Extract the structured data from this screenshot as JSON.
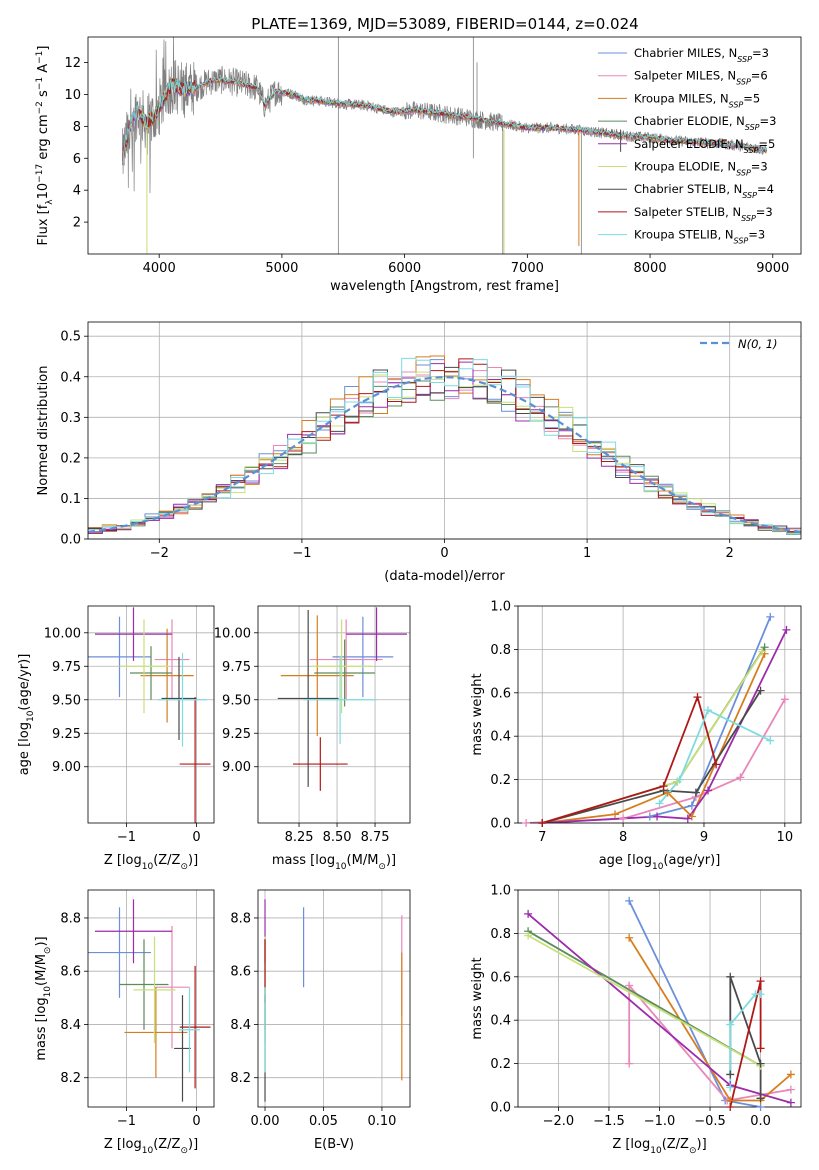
{
  "figure": {
    "title": "PLATE=1369, MJD=53089, FIBERID=0144, z=0.024"
  },
  "chart_data": [
    {
      "id": "spectrum",
      "type": "line",
      "xlabel": "wavelength [Angstrom, rest frame]",
      "ylabel_parts": [
        "Flux [f",
        "λ",
        "10",
        "−17",
        " erg cm",
        "−2",
        " s",
        "−1",
        " A",
        "−1",
        "]"
      ],
      "xlim": [
        3420,
        9230
      ],
      "ylim": [
        0,
        13.6
      ],
      "xticks": [
        4000,
        5000,
        6000,
        7000,
        8000,
        9000
      ],
      "yticks": [
        2,
        4,
        6,
        8,
        10,
        12
      ],
      "grid": false,
      "legend_position": "top-right",
      "data_color": "#808080",
      "data_anchors_x": [
        3700,
        3760,
        3820,
        3900,
        3960,
        4000,
        4100,
        4200,
        4300,
        4400,
        4500,
        4600,
        4700,
        4800,
        4862,
        4950,
        5100,
        5175,
        5300,
        5500,
        5700,
        5895,
        6100,
        6300,
        6563,
        6700,
        7000,
        7200,
        7400,
        7600,
        7800,
        8000,
        8200,
        8400,
        8600,
        8800,
        8950
      ],
      "data_anchors_y": [
        6.0,
        8.0,
        9.0,
        8.2,
        8.6,
        9.2,
        10.6,
        10.3,
        10.4,
        10.8,
        10.9,
        10.8,
        10.6,
        10.4,
        9.3,
        10.2,
        10.0,
        9.7,
        9.6,
        9.4,
        9.3,
        8.9,
        9.0,
        8.8,
        8.5,
        8.3,
        7.9,
        7.9,
        7.8,
        7.6,
        7.4,
        7.3,
        7.1,
        7.0,
        6.9,
        6.7,
        6.5
      ],
      "series": [
        {
          "name": "Chabrier MILES",
          "nssp": "3",
          "color": "#6c8fdc"
        },
        {
          "name": "Salpeter MILES",
          "nssp": "6",
          "color": "#e887b8"
        },
        {
          "name": "Kroupa MILES",
          "nssp": "5",
          "color": "#d67e1e"
        },
        {
          "name": "Chabrier ELODIE",
          "nssp": "3",
          "color": "#5c8c5c"
        },
        {
          "name": "Salpeter ELODIE",
          "nssp": "5",
          "color": "#9c2cac"
        },
        {
          "name": "Kroupa ELODIE",
          "nssp": "3",
          "color": "#c8e07a"
        },
        {
          "name": "Chabrier STELIB",
          "nssp": "4",
          "color": "#4a4a4a"
        },
        {
          "name": "Salpeter STELIB",
          "nssp": "3",
          "color": "#b01818"
        },
        {
          "name": "Kroupa STELIB",
          "nssp": "3",
          "color": "#7cdce0"
        }
      ],
      "legend_prefix": "N",
      "legend_sub": "SSP",
      "legend_eq": "="
    },
    {
      "id": "residuals",
      "type": "line",
      "xlabel": "(data-model)/error",
      "ylabel": "Normed distribution",
      "xlim": [
        -2.5,
        2.5
      ],
      "ylim": [
        0,
        0.535
      ],
      "xticks": [
        -2,
        -1,
        0,
        1,
        2
      ],
      "xticklabels": [
        "−2",
        "−1",
        "0",
        "1",
        "2"
      ],
      "yticks": [
        0.0,
        0.1,
        0.2,
        0.3,
        0.4,
        0.5
      ],
      "yticklabels": [
        "0.0",
        "0.1",
        "0.2",
        "0.3",
        "0.4",
        "0.5"
      ],
      "grid": true,
      "legend_position": "top-right",
      "reference_label": "N(0, 1)",
      "reference_color": "#5b8fd6",
      "bin_width": 0.1,
      "series_colors": [
        "#6c8fdc",
        "#e887b8",
        "#d67e1e",
        "#5c8c5c",
        "#9c2cac",
        "#c8e07a",
        "#4a4a4a",
        "#b01818",
        "#7cdce0"
      ]
    },
    {
      "id": "age-vs-Z",
      "type": "scatter",
      "xlabel_parts": [
        "Z [log",
        "10",
        "(Z/Z",
        "⊙",
        ")]"
      ],
      "ylabel_parts": [
        "age  [log",
        "10",
        "(age/yr)]"
      ],
      "xlim": [
        -1.55,
        0.25
      ],
      "ylim": [
        8.58,
        10.2
      ],
      "xticks": [
        -1,
        0
      ],
      "xticklabels": [
        "−1",
        "0"
      ],
      "yticks": [
        9.0,
        9.25,
        9.5,
        9.75,
        10.0
      ],
      "yticklabels": [
        "9.00",
        "9.25",
        "9.50",
        "9.75",
        "10.00"
      ],
      "grid": true,
      "points": [
        {
          "x": -1.1,
          "xerr": 0.45,
          "y": 9.82,
          "yerr": 0.3,
          "color": "#6c8fdc"
        },
        {
          "x": -0.35,
          "xerr": 0.25,
          "y": 9.8,
          "yerr": 0.3,
          "color": "#e887b8"
        },
        {
          "x": -0.42,
          "xerr": 0.38,
          "y": 9.68,
          "yerr": 0.35,
          "color": "#d67e1e"
        },
        {
          "x": -0.65,
          "xerr": 0.3,
          "y": 9.7,
          "yerr": 0.2,
          "color": "#5c8c5c"
        },
        {
          "x": -0.9,
          "xerr": 0.55,
          "y": 9.99,
          "yerr": 0.2,
          "color": "#9c2cac"
        },
        {
          "x": -0.75,
          "xerr": 0.35,
          "y": 9.75,
          "yerr": 0.35,
          "color": "#c8e07a"
        },
        {
          "x": -0.25,
          "xerr": 0.25,
          "y": 9.51,
          "yerr": 0.31,
          "color": "#4a4a4a"
        },
        {
          "x": -0.02,
          "xerr": 0.22,
          "y": 9.02,
          "yerr": 0.5,
          "color": "#b01818"
        },
        {
          "x": -0.2,
          "xerr": 0.35,
          "y": 9.5,
          "yerr": 0.35,
          "color": "#7cdce0"
        }
      ]
    },
    {
      "id": "age-vs-mass",
      "type": "scatter",
      "xlabel_parts": [
        "mass [log",
        "10",
        "(M/M",
        "⊙",
        ")]"
      ],
      "xlim": [
        7.98,
        8.98
      ],
      "ylim": [
        8.58,
        10.2
      ],
      "xticks": [
        8.25,
        8.5,
        8.75
      ],
      "xticklabels": [
        "8.25",
        "8.50",
        "8.75"
      ],
      "yticks": [
        9.0,
        9.25,
        9.5,
        9.75,
        10.0
      ],
      "yticklabels": [
        "9.00",
        "9.25",
        "9.50",
        "9.75",
        "10.00"
      ],
      "grid": true,
      "points": [
        {
          "x": 8.67,
          "xerr": 0.2,
          "y": 9.82,
          "yerr": 0.3,
          "color": "#6c8fdc"
        },
        {
          "x": 8.56,
          "xerr": 0.24,
          "y": 9.8,
          "yerr": 0.3,
          "color": "#e887b8"
        },
        {
          "x": 8.37,
          "xerr": 0.24,
          "y": 9.68,
          "yerr": 0.45,
          "color": "#d67e1e"
        },
        {
          "x": 8.55,
          "xerr": 0.2,
          "y": 9.7,
          "yerr": 0.25,
          "color": "#5c8c5c"
        },
        {
          "x": 8.76,
          "xerr": 0.2,
          "y": 9.99,
          "yerr": 0.2,
          "color": "#9c2cac"
        },
        {
          "x": 8.53,
          "xerr": 0.2,
          "y": 9.75,
          "yerr": 0.35,
          "color": "#c8e07a"
        },
        {
          "x": 8.31,
          "xerr": 0.2,
          "y": 9.51,
          "yerr": 0.66,
          "color": "#4a4a4a"
        },
        {
          "x": 8.39,
          "xerr": 0.18,
          "y": 9.02,
          "yerr": 0.2,
          "color": "#b01818"
        },
        {
          "x": 8.52,
          "xerr": 0.24,
          "y": 9.5,
          "yerr": 0.33,
          "color": "#7cdce0"
        }
      ]
    },
    {
      "id": "weight-vs-age",
      "type": "line",
      "xlabel_parts": [
        "age  [log",
        "10",
        "(age/yr)]"
      ],
      "ylabel": "mass weight",
      "xlim": [
        6.7,
        10.2
      ],
      "ylim": [
        0,
        1.0
      ],
      "xticks": [
        7,
        8,
        9,
        10
      ],
      "yticks": [
        0.0,
        0.2,
        0.4,
        0.6,
        0.8,
        1.0
      ],
      "yticklabels": [
        "0.0",
        "0.2",
        "0.4",
        "0.6",
        "0.8",
        "1.0"
      ],
      "grid": true,
      "series": [
        {
          "color": "#6c8fdc",
          "x": [
            8.33,
            8.85,
            9.82
          ],
          "y": [
            0.03,
            0.08,
            0.95
          ]
        },
        {
          "color": "#e887b8",
          "x": [
            6.8,
            8.0,
            8.9,
            9.45,
            10.0
          ],
          "y": [
            0.0,
            0.02,
            0.12,
            0.21,
            0.57
          ]
        },
        {
          "color": "#d67e1e",
          "x": [
            7.0,
            7.9,
            8.55,
            8.85,
            9.75
          ],
          "y": [
            0.0,
            0.04,
            0.14,
            0.03,
            0.78
          ]
        },
        {
          "color": "#5c8c5c",
          "x": [
            7.0,
            8.67,
            9.75
          ],
          "y": [
            0.0,
            0.19,
            0.81
          ]
        },
        {
          "color": "#9c2cac",
          "x": [
            7.0,
            8.42,
            8.8,
            9.05,
            10.02
          ],
          "y": [
            0.0,
            0.03,
            0.02,
            0.15,
            0.89
          ]
        },
        {
          "color": "#c8e07a",
          "x": [
            7.0,
            8.67,
            9.72
          ],
          "y": [
            0.0,
            0.19,
            0.79
          ]
        },
        {
          "color": "#4a4a4a",
          "x": [
            7.0,
            8.5,
            8.9,
            9.7
          ],
          "y": [
            0.0,
            0.15,
            0.14,
            0.61
          ]
        },
        {
          "color": "#b01818",
          "x": [
            7.0,
            8.5,
            8.92,
            9.15
          ],
          "y": [
            0.0,
            0.17,
            0.58,
            0.27
          ]
        },
        {
          "color": "#7cdce0",
          "x": [
            8.45,
            8.7,
            9.05,
            9.82
          ],
          "y": [
            0.09,
            0.2,
            0.52,
            0.38
          ]
        }
      ]
    },
    {
      "id": "mass-vs-Z",
      "type": "scatter",
      "xlabel_parts": [
        "Z [log",
        "10",
        "(Z/Z",
        "⊙",
        ")]"
      ],
      "ylabel_parts": [
        "mass [log",
        "10",
        "(M/M",
        "⊙",
        ")]"
      ],
      "xlim": [
        -1.55,
        0.25
      ],
      "ylim": [
        8.09,
        8.905
      ],
      "xticks": [
        -1,
        0
      ],
      "xticklabels": [
        "−1",
        "0"
      ],
      "yticks": [
        8.2,
        8.4,
        8.6,
        8.8
      ],
      "yticklabels": [
        "8.2",
        "8.4",
        "8.6",
        "8.8"
      ],
      "grid": true,
      "points": [
        {
          "x": -1.1,
          "xerr": 0.45,
          "y": 8.67,
          "yerr": 0.17,
          "color": "#6c8fdc"
        },
        {
          "x": -0.35,
          "xerr": 0.25,
          "y": 8.54,
          "yerr": 0.23,
          "color": "#e887b8"
        },
        {
          "x": -0.58,
          "xerr": 0.45,
          "y": 8.37,
          "yerr": 0.17,
          "color": "#d67e1e"
        },
        {
          "x": -0.75,
          "xerr": 0.35,
          "y": 8.55,
          "yerr": 0.17,
          "color": "#5c8c5c"
        },
        {
          "x": -0.9,
          "xerr": 0.55,
          "y": 8.75,
          "yerr": 0.12,
          "color": "#9c2cac"
        },
        {
          "x": -0.6,
          "xerr": 0.3,
          "y": 8.53,
          "yerr": 0.2,
          "color": "#c8e07a"
        },
        {
          "x": -0.2,
          "xerr": 0.12,
          "y": 8.31,
          "yerr": 0.2,
          "color": "#4a4a4a"
        },
        {
          "x": -0.02,
          "xerr": 0.22,
          "y": 8.39,
          "yerr": 0.23,
          "color": "#b01818"
        },
        {
          "x": -0.1,
          "xerr": 0.15,
          "y": 8.38,
          "yerr": 0.16,
          "color": "#7cdce0"
        }
      ]
    },
    {
      "id": "mass-vs-ebv",
      "type": "scatter",
      "xlabel": "E(B-V)",
      "xlim": [
        -0.006,
        0.124
      ],
      "ylim": [
        8.09,
        8.905
      ],
      "xticks": [
        0.0,
        0.05,
        0.1
      ],
      "xticklabels": [
        "0.00",
        "0.05",
        "0.10"
      ],
      "yticks": [
        8.2,
        8.4,
        8.6,
        8.8
      ],
      "yticklabels": [
        "8.2",
        "8.4",
        "8.6",
        "8.8"
      ],
      "grid": true,
      "points": [
        {
          "x": 0.033,
          "y": 8.69,
          "yerr": 0.15,
          "color": "#6c8fdc"
        },
        {
          "x": 0.117,
          "y": 8.62,
          "yerr": 0.19,
          "color": "#e887b8"
        },
        {
          "x": 0.117,
          "y": 8.43,
          "yerr": 0.24,
          "color": "#d67e1e"
        },
        {
          "x": 0.0,
          "y": 8.55,
          "yerr": 0.17,
          "color": "#5c8c5c"
        },
        {
          "x": 0.0,
          "y": 8.75,
          "yerr": 0.12,
          "color": "#9c2cac"
        },
        {
          "x": 0.0,
          "y": 8.53,
          "yerr": 0.2,
          "color": "#c8e07a"
        },
        {
          "x": 0.0,
          "y": 8.31,
          "yerr": 0.2,
          "color": "#4a4a4a"
        },
        {
          "x": 0.0,
          "y": 8.6,
          "yerr": 0.12,
          "color": "#b01818"
        },
        {
          "x": 0.0,
          "y": 8.38,
          "yerr": 0.16,
          "color": "#7cdce0"
        }
      ]
    },
    {
      "id": "weight-vs-Z",
      "type": "line",
      "xlabel_parts": [
        "Z [log",
        "10",
        "(Z/Z",
        "⊙",
        ")]"
      ],
      "ylabel": "mass weight",
      "xlim": [
        -2.4,
        0.4
      ],
      "ylim": [
        0,
        1.0
      ],
      "xticks": [
        -2.0,
        -1.5,
        -1.0,
        -0.5,
        0.0
      ],
      "xticklabels": [
        "−2.0",
        "−1.5",
        "−1.0",
        "−0.5",
        "0.0"
      ],
      "yticks": [
        0.0,
        0.2,
        0.4,
        0.6,
        0.8,
        1.0
      ],
      "yticklabels": [
        "0.0",
        "0.2",
        "0.4",
        "0.6",
        "0.8",
        "1.0"
      ],
      "grid": true,
      "series": [
        {
          "color": "#6c8fdc",
          "x": [
            -1.3,
            -0.35,
            0.0
          ],
          "y": [
            0.95,
            0.03,
            0.0
          ]
        },
        {
          "color": "#e887b8",
          "x": [
            -1.3,
            -1.3,
            -0.33,
            0.3
          ],
          "y": [
            0.2,
            0.56,
            0.03,
            0.08
          ]
        },
        {
          "color": "#d67e1e",
          "x": [
            -1.3,
            -0.3,
            0.0,
            0.3
          ],
          "y": [
            0.78,
            0.03,
            0.03,
            0.15
          ]
        },
        {
          "color": "#5c8c5c",
          "x": [
            -2.3,
            0.0
          ],
          "y": [
            0.81,
            0.19
          ]
        },
        {
          "color": "#9c2cac",
          "x": [
            -2.3,
            -0.3,
            0.3
          ],
          "y": [
            0.89,
            0.1,
            0.02
          ]
        },
        {
          "color": "#c8e07a",
          "x": [
            -2.3,
            0.0
          ],
          "y": [
            0.79,
            0.19
          ]
        },
        {
          "color": "#4a4a4a",
          "x": [
            -0.3,
            -0.3,
            0.0,
            0.0
          ],
          "y": [
            0.15,
            0.6,
            0.2,
            0.04
          ]
        },
        {
          "color": "#b01818",
          "x": [
            0.0,
            0.0,
            -0.3
          ],
          "y": [
            0.27,
            0.58,
            0.0
          ]
        },
        {
          "color": "#7cdce0",
          "x": [
            -0.3,
            -0.3,
            -0.05,
            0.0
          ],
          "y": [
            0.09,
            0.38,
            0.52,
            0.52
          ]
        }
      ]
    }
  ]
}
